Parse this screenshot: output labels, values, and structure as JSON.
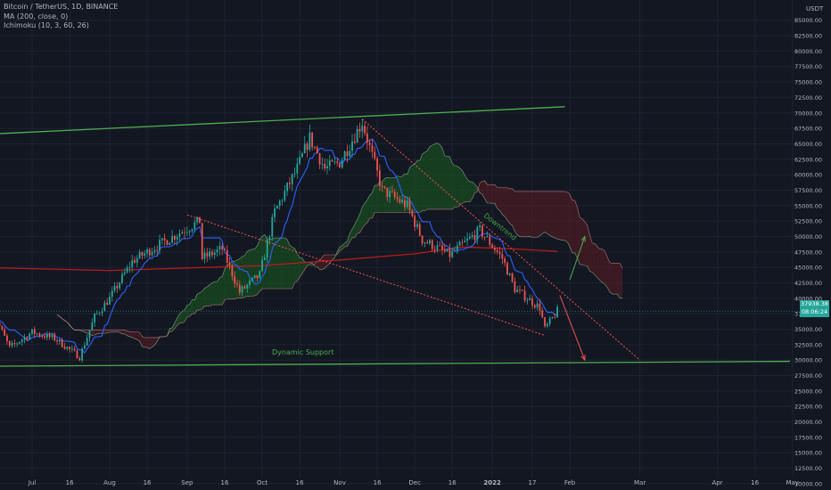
{
  "chart_data": {
    "type": "candlestick",
    "symbol": "Bitcoin / TetherUS, 1D, BINANCE",
    "indicators": [
      "MA (200, close, 0)",
      "Ichimoku (10, 3, 60, 26)"
    ],
    "currency": "USDT",
    "price_axis": {
      "labels": [
        "85000.00",
        "82500.00",
        "80000.00",
        "77500.00",
        "75000.00",
        "72500.00",
        "70000.00",
        "67500.00",
        "65000.00",
        "62500.00",
        "60000.00",
        "57500.00",
        "55000.00",
        "52500.00",
        "50000.00",
        "47500.00",
        "45000.00",
        "42500.00",
        "40000.00",
        "37500.00",
        "35000.00",
        "32500.00",
        "30000.00",
        "27500.00",
        "25000.00",
        "22500.00",
        "20000.00",
        "17500.00",
        "15000.00",
        "12500.00",
        "10000.00"
      ],
      "range": [
        9000,
        87000
      ]
    },
    "time_axis": {
      "labels": [
        "Jul",
        "16",
        "Aug",
        "16",
        "Sep",
        "16",
        "Oct",
        "16",
        "Nov",
        "16",
        "Dec",
        "16",
        "2022",
        "17",
        "Feb",
        "Mar",
        "Apr",
        "16",
        "May"
      ]
    },
    "last_price": "37938.38",
    "countdown": "08:06:24",
    "annotations": {
      "support_label": "Dynamic Support",
      "downtrend_label": "Downtrend"
    },
    "trend_lines": [
      {
        "name": "upper-channel",
        "from": [
          "Jun 10",
          66500
        ],
        "to": [
          "Jan 30",
          71000
        ]
      },
      {
        "name": "dynamic-support",
        "from": [
          "Jun 10",
          29000
        ],
        "to": [
          "Apr 30",
          29800
        ]
      },
      {
        "name": "downtrend-line",
        "from": [
          "Nov 10",
          69000
        ],
        "to": [
          "Mar 1",
          30000
        ]
      },
      {
        "name": "lower-wedge",
        "from": [
          "Sep 1",
          53500
        ],
        "to": [
          "Jan 22",
          34000
        ]
      }
    ],
    "series": [
      {
        "name": "price",
        "points": [
          [
            "Jun 15",
            38000
          ],
          [
            "Jun 22",
            32000
          ],
          [
            "Jul 1",
            34500
          ],
          [
            "Jul 10",
            33500
          ],
          [
            "Jul 20",
            30500
          ],
          [
            "Jul 26",
            37000
          ],
          [
            "Aug 1",
            40000
          ],
          [
            "Aug 10",
            46000
          ],
          [
            "Aug 20",
            48500
          ],
          [
            "Sep 6",
            52500
          ],
          [
            "Sep 7",
            46500
          ],
          [
            "Sep 15",
            48000
          ],
          [
            "Sep 22",
            41000
          ],
          [
            "Sep 30",
            43800
          ],
          [
            "Oct 6",
            54000
          ],
          [
            "Oct 15",
            61000
          ],
          [
            "Oct 20",
            66000
          ],
          [
            "Oct 26",
            61000
          ],
          [
            "Nov 1",
            62000
          ],
          [
            "Nov 10",
            68500
          ],
          [
            "Nov 18",
            57500
          ],
          [
            "Nov 28",
            55000
          ],
          [
            "Dec 4",
            49500
          ],
          [
            "Dec 15",
            47000
          ],
          [
            "Dec 27",
            51000
          ],
          [
            "Jan 5",
            46500
          ],
          [
            "Jan 10",
            41500
          ],
          [
            "Jan 20",
            38500
          ],
          [
            "Jan 22",
            35000
          ],
          [
            "Jan 27",
            37938
          ]
        ]
      },
      {
        "name": "MA (200, close, 0)",
        "points": [
          [
            "Jun 10",
            45000
          ],
          [
            "Aug 1",
            44500
          ],
          [
            "Oct 1",
            45300
          ],
          [
            "Nov 1",
            46200
          ],
          [
            "Dec 1",
            47200
          ],
          [
            "Dec 20",
            48300
          ],
          [
            "Jan 10",
            48000
          ],
          [
            "Jan 27",
            47600
          ]
        ]
      }
    ]
  },
  "colors": {
    "background": "#131722",
    "grid": "#1f2230",
    "bullish": "#26a69a",
    "bearish": "#ef5350",
    "ma": "#b71c1c",
    "support_line": "#4caf50",
    "downtrend_text": "#43a047",
    "cloud_bull": "#1b5e20",
    "cloud_bear": "#5d1e25"
  }
}
